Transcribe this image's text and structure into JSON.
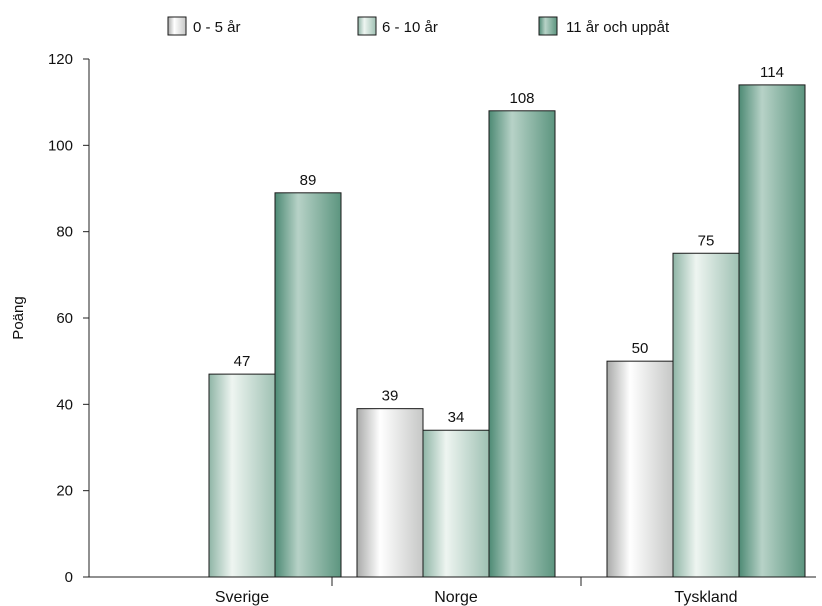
{
  "chart_data": {
    "type": "bar",
    "title": "",
    "xlabel": "",
    "ylabel": "Poäng",
    "categories": [
      "Sverige",
      "Norge",
      "Tyskland"
    ],
    "series": [
      {
        "name": "0 - 5 år",
        "values": [
          null,
          39,
          50
        ],
        "color": "#d8dad9"
      },
      {
        "name": "6 - 10 år",
        "values": [
          47,
          34,
          75
        ],
        "color": "#b8cfc6"
      },
      {
        "name": "11 år och uppåt",
        "values": [
          89,
          108,
          114
        ],
        "color": "#6f9f8d"
      }
    ],
    "ylim": [
      0,
      120
    ],
    "yticks": [
      0,
      20,
      40,
      60,
      80,
      100,
      120
    ],
    "grid": false,
    "legend_position": "top"
  }
}
